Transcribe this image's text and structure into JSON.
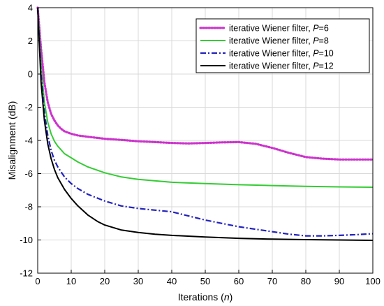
{
  "chart_data": {
    "type": "line",
    "title": "",
    "xlabel": "Iterations (",
    "xlabel_var": "n",
    "xlabel_tail": ")",
    "ylabel": "Misalignment (dB)",
    "xlim": [
      0,
      100
    ],
    "ylim": [
      -12,
      4
    ],
    "xticks": [
      "0",
      "10",
      "20",
      "30",
      "40",
      "50",
      "60",
      "70",
      "80",
      "90",
      "100"
    ],
    "yticks": [
      "4",
      "2",
      "0",
      "-2",
      "-4",
      "-6",
      "-8",
      "-10",
      "-12"
    ],
    "grid": true,
    "legend_position": "top-right",
    "series": [
      {
        "name": "iterative Wiener filter, ",
        "param_var": "P",
        "param_value": "=6",
        "color": "#cc33cc",
        "style": "dotted",
        "x": [
          0,
          1,
          2,
          3,
          4,
          5,
          6,
          7,
          8,
          10,
          12,
          15,
          20,
          25,
          30,
          35,
          40,
          45,
          50,
          55,
          60,
          65,
          70,
          75,
          80,
          85,
          90,
          95,
          100
        ],
        "y": [
          4.0,
          1.5,
          -0.5,
          -1.7,
          -2.4,
          -2.8,
          -3.1,
          -3.3,
          -3.45,
          -3.6,
          -3.7,
          -3.78,
          -3.9,
          -3.97,
          -4.05,
          -4.1,
          -4.15,
          -4.18,
          -4.15,
          -4.12,
          -4.1,
          -4.2,
          -4.45,
          -4.75,
          -5.0,
          -5.1,
          -5.15,
          -5.15,
          -5.15
        ]
      },
      {
        "name": "iterative Wiener filter, ",
        "param_var": "P",
        "param_value": "=8",
        "color": "#33cc33",
        "style": "solid",
        "x": [
          0,
          1,
          2,
          3,
          4,
          5,
          6,
          8,
          10,
          12,
          15,
          20,
          25,
          30,
          40,
          50,
          60,
          70,
          80,
          90,
          100
        ],
        "y": [
          4.0,
          0.5,
          -1.7,
          -2.9,
          -3.6,
          -4.05,
          -4.35,
          -4.8,
          -5.05,
          -5.3,
          -5.6,
          -5.95,
          -6.2,
          -6.35,
          -6.52,
          -6.6,
          -6.67,
          -6.72,
          -6.77,
          -6.8,
          -6.82
        ]
      },
      {
        "name": "iterative Wiener filter, ",
        "param_var": "P",
        "param_value": "=10",
        "color": "#2222bb",
        "style": "dashdot",
        "x": [
          0,
          1,
          2,
          3,
          4,
          5,
          6,
          8,
          10,
          12,
          15,
          20,
          25,
          30,
          35,
          40,
          45,
          50,
          55,
          60,
          65,
          70,
          75,
          80,
          85,
          90,
          95,
          100
        ],
        "y": [
          4.0,
          0.0,
          -2.3,
          -3.7,
          -4.6,
          -5.2,
          -5.6,
          -6.2,
          -6.6,
          -6.9,
          -7.25,
          -7.65,
          -7.95,
          -8.1,
          -8.2,
          -8.3,
          -8.55,
          -8.8,
          -9.0,
          -9.2,
          -9.35,
          -9.5,
          -9.65,
          -9.75,
          -9.75,
          -9.72,
          -9.68,
          -9.62
        ]
      },
      {
        "name": "iterative Wiener filter, ",
        "param_var": "P",
        "param_value": "=12",
        "color": "#000000",
        "style": "solid",
        "x": [
          0,
          1,
          2,
          3,
          4,
          5,
          6,
          8,
          10,
          12,
          15,
          18,
          20,
          25,
          30,
          35,
          40,
          50,
          60,
          70,
          80,
          90,
          100
        ],
        "y": [
          4.0,
          -0.5,
          -2.8,
          -4.2,
          -5.1,
          -5.75,
          -6.25,
          -6.95,
          -7.5,
          -7.95,
          -8.5,
          -8.9,
          -9.1,
          -9.4,
          -9.55,
          -9.65,
          -9.72,
          -9.82,
          -9.9,
          -9.95,
          -9.98,
          -10.0,
          -10.02
        ]
      }
    ]
  }
}
